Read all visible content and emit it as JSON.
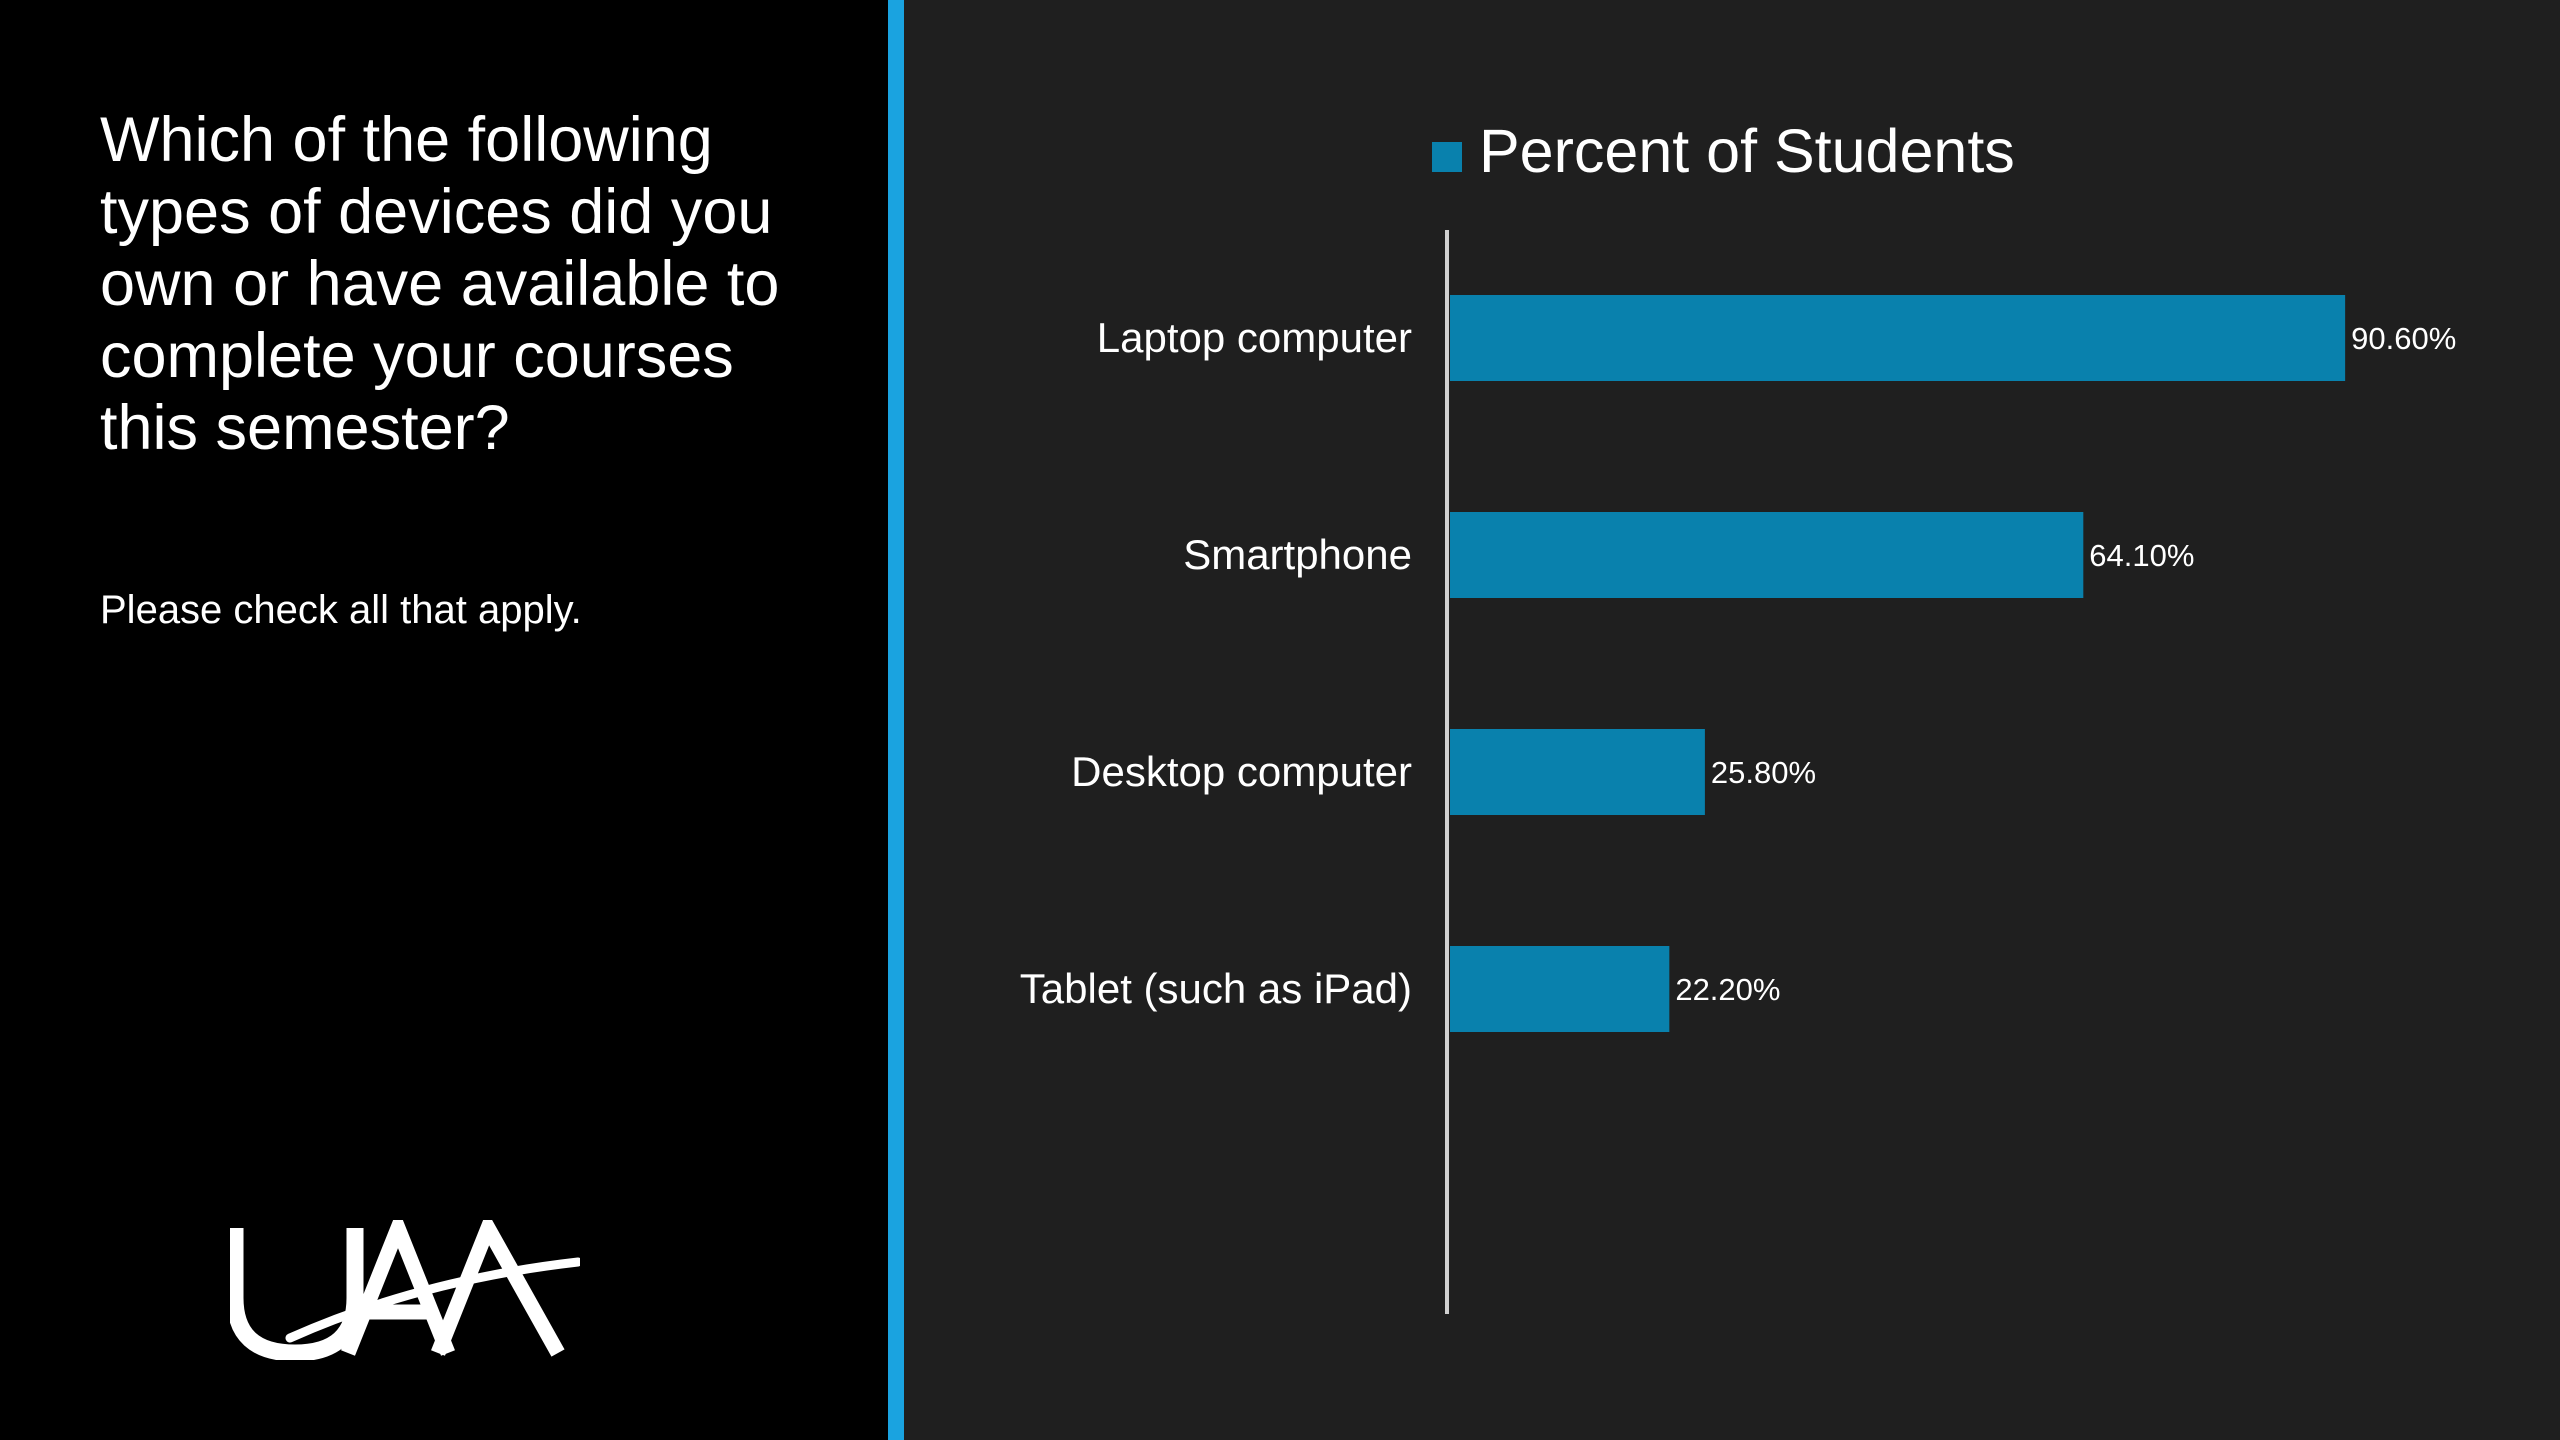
{
  "slide": {
    "question": "Which of the following types of devices did you own or have available to complete your courses this semester?",
    "instruction": "Please check all that apply.",
    "logo_text": "UAA"
  },
  "colors": {
    "background_left": "#000000",
    "background_chart": "#1f1f1f",
    "accent_bar": "#1aa3e0",
    "bar_fill": "#0981ad",
    "text": "#ffffff",
    "axis": "#d0d0d0"
  },
  "chart_data": {
    "type": "bar",
    "orientation": "horizontal",
    "categories": [
      "Laptop computer",
      "Smartphone",
      "Desktop computer",
      "Tablet (such as iPad)"
    ],
    "series": [
      {
        "name": "Percent of Students",
        "values": [
          90.6,
          64.1,
          25.8,
          22.2
        ]
      }
    ],
    "data_labels": [
      "90.60%",
      "64.10%",
      "25.80%",
      "22.20%"
    ],
    "title": "",
    "xlabel": "",
    "ylabel": "",
    "xlim": [
      0,
      100
    ],
    "grid": false,
    "legend_position": "top"
  }
}
